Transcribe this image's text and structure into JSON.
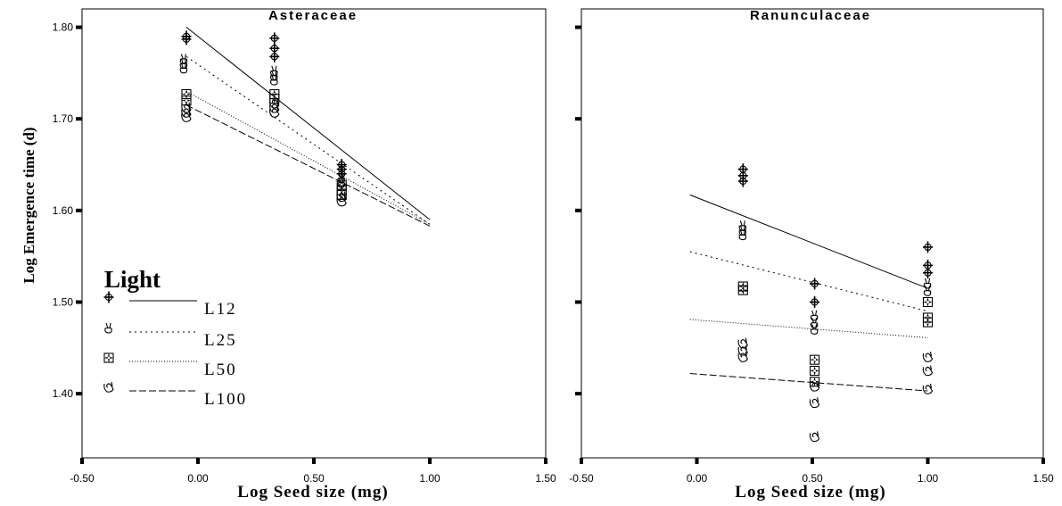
{
  "chart_data": [
    {
      "type": "scatter",
      "title": "Asteraceae",
      "xlabel": "Log Seed size (mg)",
      "ylabel": "Log Emergence time (d)",
      "xlim": [
        -0.5,
        1.5
      ],
      "ylim": [
        1.33,
        1.82
      ],
      "xticks": [
        "-0.50",
        "0.00",
        "0.50",
        "1.00",
        "1.50"
      ],
      "yticks": [
        "1.40",
        "1.50",
        "1.60",
        "1.70",
        "1.80"
      ],
      "grid": false,
      "series": [
        {
          "name": "L12",
          "marker": "cross-circle",
          "line": "solid",
          "points": [
            [
              -0.05,
              1.79
            ],
            [
              -0.05,
              1.787
            ],
            [
              0.33,
              1.788
            ],
            [
              0.33,
              1.777
            ],
            [
              0.33,
              1.768
            ],
            [
              0.62,
              1.65
            ],
            [
              0.62,
              1.645
            ],
            [
              0.62,
              1.64
            ]
          ],
          "fit": [
            [
              -0.05,
              1.8
            ],
            [
              1.0,
              1.59
            ]
          ]
        },
        {
          "name": "L25",
          "marker": "hand-v",
          "line": "dotted",
          "points": [
            [
              -0.06,
              1.765
            ],
            [
              -0.06,
              1.76
            ],
            [
              -0.06,
              1.755
            ],
            [
              0.33,
              1.752
            ],
            [
              0.33,
              1.747
            ],
            [
              0.33,
              1.742
            ],
            [
              0.62,
              1.635
            ],
            [
              0.62,
              1.63
            ]
          ],
          "fit": [
            [
              -0.05,
              1.768
            ],
            [
              1.0,
              1.585
            ]
          ]
        },
        {
          "name": "L50",
          "marker": "square-cross",
          "line": "fine-dotted",
          "points": [
            [
              -0.05,
              1.727
            ],
            [
              -0.05,
              1.72
            ],
            [
              0.33,
              1.727
            ],
            [
              0.33,
              1.722
            ],
            [
              0.62,
              1.628
            ],
            [
              0.62,
              1.622
            ],
            [
              0.62,
              1.617
            ]
          ],
          "fit": [
            [
              -0.05,
              1.73
            ],
            [
              1.0,
              1.585
            ]
          ]
        },
        {
          "name": "L100",
          "marker": "hand-ok",
          "line": "dashed",
          "points": [
            [
              -0.05,
              1.712
            ],
            [
              -0.05,
              1.707
            ],
            [
              -0.05,
              1.702
            ],
            [
              0.33,
              1.717
            ],
            [
              0.33,
              1.712
            ],
            [
              0.33,
              1.707
            ],
            [
              0.62,
              1.615
            ],
            [
              0.62,
              1.61
            ]
          ],
          "fit": [
            [
              -0.05,
              1.715
            ],
            [
              1.0,
              1.583
            ]
          ]
        }
      ],
      "legend": {
        "title": "Light",
        "entries": [
          "L12",
          "L25",
          "L50",
          "L100"
        ],
        "position": "bottom-left"
      }
    },
    {
      "type": "scatter",
      "title": "Ranunculaceae",
      "xlabel": "Log Seed size (mg)",
      "xlim": [
        -0.5,
        1.5
      ],
      "ylim": [
        1.33,
        1.82
      ],
      "xticks": [
        "-0.50",
        "0.00",
        "0.50",
        "1.00",
        "1.50"
      ],
      "grid": false,
      "series": [
        {
          "name": "L12",
          "marker": "cross-circle",
          "line": "solid",
          "points": [
            [
              0.2,
              1.645
            ],
            [
              0.2,
              1.638
            ],
            [
              0.2,
              1.632
            ],
            [
              0.51,
              1.52
            ],
            [
              0.51,
              1.5
            ],
            [
              1.0,
              1.56
            ],
            [
              1.0,
              1.54
            ],
            [
              1.0,
              1.532
            ]
          ],
          "fit": [
            [
              -0.03,
              1.617
            ],
            [
              1.0,
              1.515
            ]
          ]
        },
        {
          "name": "L25",
          "marker": "hand-v",
          "line": "dotted",
          "points": [
            [
              0.2,
              1.583
            ],
            [
              0.2,
              1.578
            ],
            [
              0.2,
              1.573
            ],
            [
              0.51,
              1.485
            ],
            [
              0.51,
              1.477
            ],
            [
              0.51,
              1.47
            ],
            [
              1.0,
              1.52
            ],
            [
              1.0,
              1.512
            ]
          ],
          "fit": [
            [
              -0.03,
              1.555
            ],
            [
              1.0,
              1.49
            ]
          ]
        },
        {
          "name": "L50",
          "marker": "square-cross",
          "line": "fine-dotted",
          "points": [
            [
              0.2,
              1.517
            ],
            [
              0.2,
              1.513
            ],
            [
              0.51,
              1.437
            ],
            [
              0.51,
              1.425
            ],
            [
              0.51,
              1.413
            ],
            [
              1.0,
              1.5
            ],
            [
              1.0,
              1.483
            ],
            [
              1.0,
              1.478
            ]
          ],
          "fit": [
            [
              -0.03,
              1.481
            ],
            [
              1.0,
              1.461
            ]
          ]
        },
        {
          "name": "L100",
          "marker": "hand-ok",
          "line": "dashed",
          "points": [
            [
              0.2,
              1.455
            ],
            [
              0.2,
              1.447
            ],
            [
              0.2,
              1.44
            ],
            [
              0.51,
              1.408
            ],
            [
              0.51,
              1.39
            ],
            [
              0.51,
              1.353
            ],
            [
              1.0,
              1.44
            ],
            [
              1.0,
              1.425
            ],
            [
              1.0,
              1.405
            ]
          ],
          "fit": [
            [
              -0.03,
              1.422
            ],
            [
              1.0,
              1.403
            ]
          ]
        }
      ]
    }
  ]
}
